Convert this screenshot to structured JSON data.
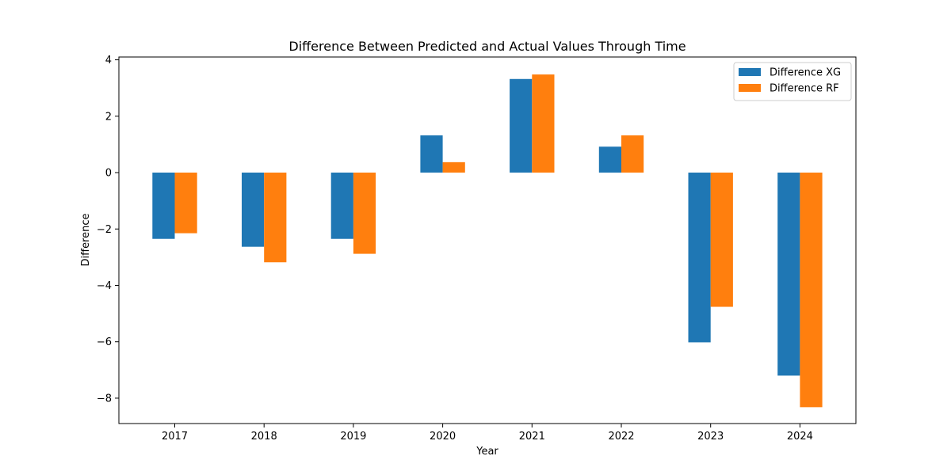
{
  "chart_data": {
    "type": "bar",
    "title": "Difference Between Predicted and Actual Values Through Time",
    "xlabel": "Year",
    "ylabel": "Difference",
    "categories": [
      "2017",
      "2018",
      "2019",
      "2020",
      "2021",
      "2022",
      "2023",
      "2024"
    ],
    "series": [
      {
        "name": "Difference XG",
        "color": "#1f77b4",
        "values": [
          -2.35,
          -2.63,
          -2.35,
          1.32,
          3.32,
          0.92,
          -6.02,
          -7.2
        ]
      },
      {
        "name": "Difference RF",
        "color": "#ff7f0e",
        "values": [
          -2.15,
          -3.18,
          -2.88,
          0.37,
          3.48,
          1.32,
          -4.76,
          -8.32
        ]
      }
    ],
    "ylim": [
      -8.9,
      4.1
    ],
    "yticks": [
      4,
      2,
      0,
      -2,
      -4,
      -6,
      -8
    ],
    "ytick_labels": [
      "4",
      "2",
      "0",
      "−2",
      "−4",
      "−6",
      "−8"
    ],
    "grid": false,
    "legend_position": "top-right"
  }
}
